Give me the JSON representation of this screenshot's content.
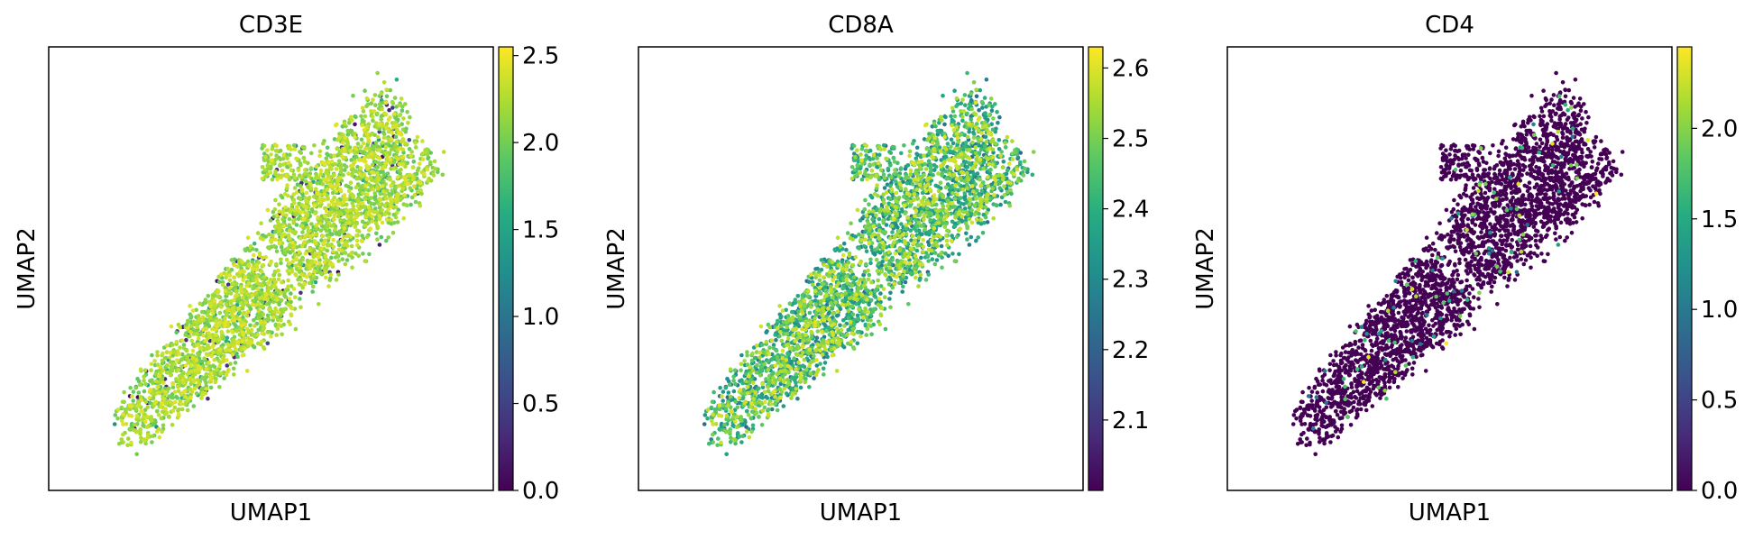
{
  "chart_data": [
    {
      "type": "scatter",
      "title": "CD3E",
      "xlabel": "UMAP1",
      "ylabel": "UMAP2",
      "colormap": "viridis",
      "colorbar": {
        "range": [
          0.0,
          2.55
        ],
        "ticks": [
          "0.0",
          "0.5",
          "1.0",
          "1.5",
          "2.0",
          "2.5"
        ]
      },
      "typical_value": 2.2,
      "point_count": 3000
    },
    {
      "type": "scatter",
      "title": "CD8A",
      "xlabel": "UMAP1",
      "ylabel": "UMAP2",
      "colormap": "viridis",
      "colorbar": {
        "range": [
          2.0,
          2.63
        ],
        "ticks": [
          "2.1",
          "2.2",
          "2.3",
          "2.4",
          "2.5",
          "2.6"
        ]
      },
      "typical_value": 2.42,
      "point_count": 3000
    },
    {
      "type": "scatter",
      "title": "CD4",
      "xlabel": "UMAP1",
      "ylabel": "UMAP2",
      "colormap": "viridis",
      "colorbar": {
        "range": [
          0.0,
          2.45
        ],
        "ticks": [
          "0.0",
          "0.5",
          "1.0",
          "1.5",
          "2.0"
        ]
      },
      "typical_value": 0.0,
      "point_count": 3000
    }
  ]
}
